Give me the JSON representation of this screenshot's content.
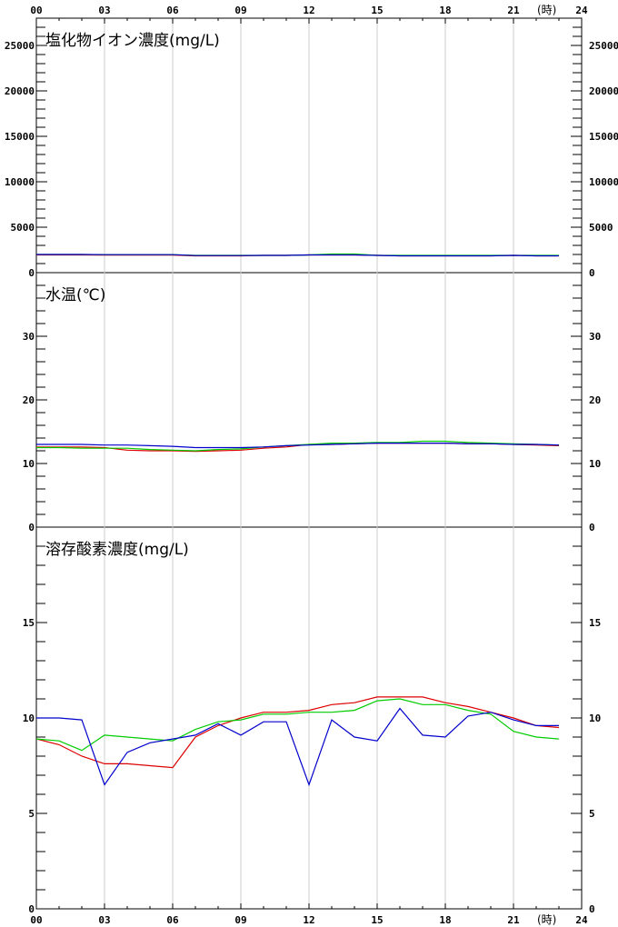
{
  "x_unit_label": "(時)",
  "x_tick_labels": [
    "00",
    "03",
    "06",
    "09",
    "12",
    "15",
    "18",
    "21",
    "24"
  ],
  "colors": {
    "red": "#dd0000",
    "green": "#00cc00",
    "blue": "#0000cc",
    "gridline": "#cccccc",
    "axis": "#000000"
  },
  "chart_data": [
    {
      "type": "line",
      "title": "塩化物イオン濃度(mg/L)",
      "x": [
        0,
        1,
        2,
        3,
        4,
        5,
        6,
        7,
        8,
        9,
        10,
        11,
        12,
        13,
        14,
        15,
        16,
        17,
        18,
        19,
        20,
        21,
        22,
        23
      ],
      "xlim": [
        0,
        24
      ],
      "ylim": [
        0,
        28000
      ],
      "y_ticks": [
        0,
        5000,
        10000,
        15000,
        20000,
        25000
      ],
      "y_tick_labels": [
        "0",
        "5000",
        "10000",
        "15000",
        "20000",
        "25000"
      ],
      "series": [
        {
          "color": "#dd0000",
          "values": [
            1950,
            1950,
            1950,
            1940,
            1940,
            1940,
            1940,
            1850,
            1850,
            1850,
            1900,
            1900,
            1950,
            1950,
            1950,
            1900,
            1850,
            1850,
            1850,
            1850,
            1850,
            1900,
            1850,
            1850
          ]
        },
        {
          "color": "#00cc00",
          "values": [
            2000,
            2000,
            2000,
            1980,
            1980,
            1980,
            1980,
            1900,
            1900,
            1900,
            1900,
            1900,
            1950,
            2050,
            2050,
            1900,
            1900,
            1900,
            1900,
            1900,
            1900,
            1900,
            1900,
            1900
          ]
        },
        {
          "color": "#0000cc",
          "values": [
            2000,
            2000,
            2000,
            1980,
            1980,
            1980,
            1980,
            1880,
            1880,
            1880,
            1900,
            1900,
            1950,
            1950,
            1950,
            1900,
            1850,
            1850,
            1850,
            1850,
            1850,
            1900,
            1850,
            1850
          ]
        }
      ]
    },
    {
      "type": "line",
      "title": "水温(℃)",
      "x": [
        0,
        1,
        2,
        3,
        4,
        5,
        6,
        7,
        8,
        9,
        10,
        11,
        12,
        13,
        14,
        15,
        16,
        17,
        18,
        19,
        20,
        21,
        22,
        23
      ],
      "xlim": [
        0,
        24
      ],
      "ylim": [
        0,
        40
      ],
      "y_ticks": [
        0,
        10,
        20,
        30
      ],
      "y_tick_labels": [
        "0",
        "10",
        "20",
        "30"
      ],
      "series": [
        {
          "color": "#dd0000",
          "values": [
            12.6,
            12.6,
            12.6,
            12.5,
            12.1,
            12.0,
            12.0,
            11.9,
            12.0,
            12.1,
            12.4,
            12.6,
            13.0,
            13.0,
            13.1,
            13.2,
            13.2,
            13.2,
            13.2,
            13.1,
            13.1,
            13.0,
            12.9,
            12.8
          ]
        },
        {
          "color": "#00cc00",
          "values": [
            12.5,
            12.5,
            12.4,
            12.4,
            12.4,
            12.2,
            12.1,
            12.0,
            12.2,
            12.3,
            12.6,
            12.8,
            13.0,
            13.2,
            13.2,
            13.3,
            13.3,
            13.5,
            13.5,
            13.3,
            13.2,
            13.1,
            13.0,
            12.9
          ]
        },
        {
          "color": "#0000cc",
          "values": [
            13.0,
            13.0,
            13.0,
            12.9,
            12.9,
            12.8,
            12.7,
            12.5,
            12.5,
            12.5,
            12.6,
            12.8,
            12.9,
            13.0,
            13.1,
            13.2,
            13.2,
            13.2,
            13.2,
            13.1,
            13.1,
            13.0,
            13.0,
            12.9
          ]
        }
      ]
    },
    {
      "type": "line",
      "title": "溶存酸素濃度(mg/L)",
      "x": [
        0,
        1,
        2,
        3,
        4,
        5,
        6,
        7,
        8,
        9,
        10,
        11,
        12,
        13,
        14,
        15,
        16,
        17,
        18,
        19,
        20,
        21,
        22,
        23
      ],
      "xlim": [
        0,
        24
      ],
      "ylim": [
        0,
        20
      ],
      "y_ticks": [
        0,
        5,
        10,
        15
      ],
      "y_tick_labels": [
        "0",
        "5",
        "10",
        "15"
      ],
      "series": [
        {
          "color": "#dd0000",
          "values": [
            8.9,
            8.6,
            8.0,
            7.6,
            7.6,
            7.5,
            7.4,
            9.0,
            9.6,
            10.0,
            10.3,
            10.3,
            10.4,
            10.7,
            10.8,
            11.1,
            11.1,
            11.1,
            10.8,
            10.6,
            10.3,
            10.0,
            9.6,
            9.5
          ]
        },
        {
          "color": "#00cc00",
          "values": [
            8.9,
            8.8,
            8.3,
            9.1,
            9.0,
            8.9,
            8.8,
            9.4,
            9.8,
            9.9,
            10.2,
            10.2,
            10.3,
            10.3,
            10.4,
            10.9,
            11.0,
            10.7,
            10.7,
            10.4,
            10.2,
            9.3,
            9.0,
            8.9
          ]
        },
        {
          "color": "#0000cc",
          "values": [
            10.0,
            10.0,
            9.9,
            6.5,
            8.2,
            8.7,
            8.9,
            9.1,
            9.7,
            9.1,
            9.8,
            9.8,
            6.5,
            9.9,
            9.0,
            8.8,
            10.5,
            9.1,
            9.0,
            10.1,
            10.3,
            9.9,
            9.6,
            9.6
          ]
        }
      ]
    }
  ]
}
